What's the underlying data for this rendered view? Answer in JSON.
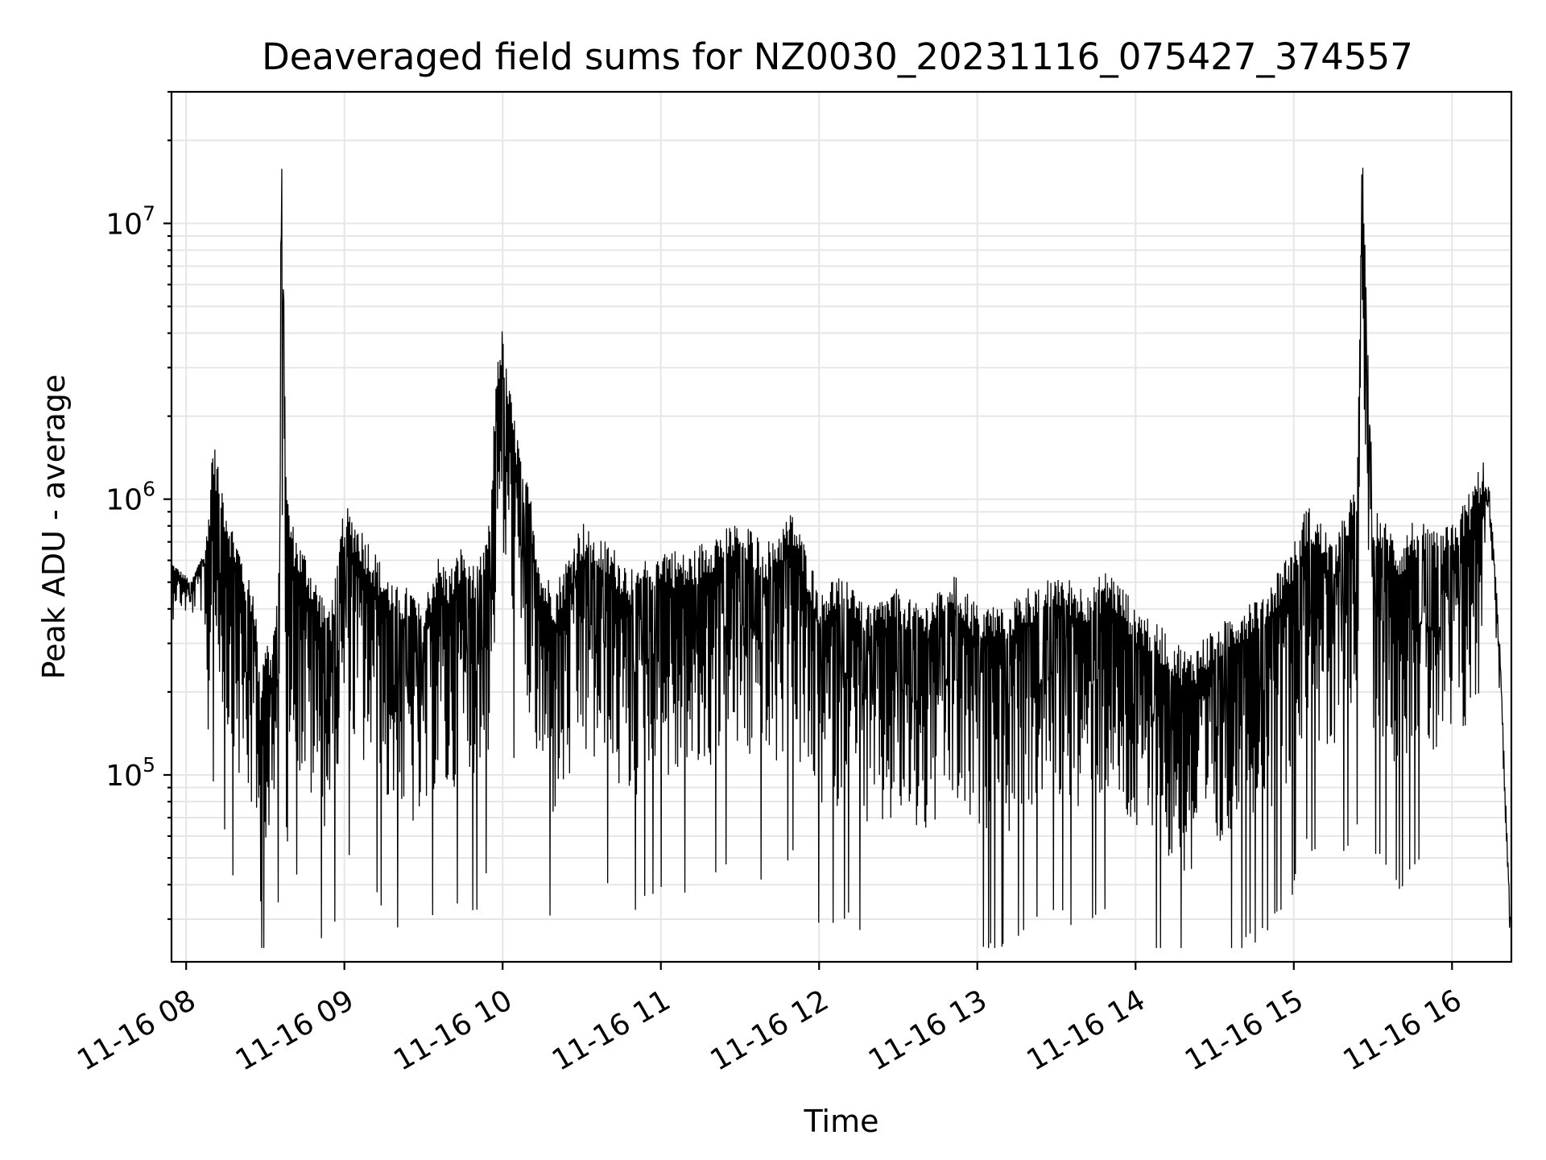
{
  "chart_data": {
    "type": "line",
    "title": "Deaveraged field sums for NZ0030_20231116_075427_374557",
    "xlabel": "Time",
    "ylabel": "Peak ADU - average",
    "x_scale": "time",
    "y_scale": "log",
    "xlim": [
      "2023-11-16 07:54:27",
      "2023-11-16 16:22:30"
    ],
    "ylim": [
      21000,
      30000000
    ],
    "grid": true,
    "legend": "none",
    "line_color": "#000000",
    "x_ticks": [
      "11-16 08",
      "11-16 09",
      "11-16 10",
      "11-16 11",
      "11-16 12",
      "11-16 13",
      "11-16 14",
      "11-16 15",
      "11-16 16"
    ],
    "y_ticks": [
      {
        "value": 100000,
        "base": "10",
        "exp": "5"
      },
      {
        "value": 1000000,
        "base": "10",
        "exp": "6"
      },
      {
        "value": 10000000,
        "base": "10",
        "exp": "7"
      }
    ],
    "series": [
      {
        "x": [
          "2023-11-16 07:54:30",
          "2023-11-16 07:58:00",
          "2023-11-16 08:02:00",
          "2023-11-16 08:06:00",
          "2023-11-16 08:08:00",
          "2023-11-16 08:10:00",
          "2023-11-16 08:12:00",
          "2023-11-16 08:14:00",
          "2023-11-16 08:17:00",
          "2023-11-16 08:20:00",
          "2023-11-16 08:23:00",
          "2023-11-16 08:26:00",
          "2023-11-16 08:28:00",
          "2023-11-16 08:30:00",
          "2023-11-16 08:32:00",
          "2023-11-16 08:34:00",
          "2023-11-16 08:35:30",
          "2023-11-16 08:36:00",
          "2023-11-16 08:37:00",
          "2023-11-16 08:38:00",
          "2023-11-16 08:40:00",
          "2023-11-16 08:43:00",
          "2023-11-16 08:46:00",
          "2023-11-16 08:50:00",
          "2023-11-16 08:55:00",
          "2023-11-16 09:00:00",
          "2023-11-16 09:05:00",
          "2023-11-16 09:10:00",
          "2023-11-16 09:15:00",
          "2023-11-16 09:20:00",
          "2023-11-16 09:25:00",
          "2023-11-16 09:30:00",
          "2023-11-16 09:35:00",
          "2023-11-16 09:40:00",
          "2023-11-16 09:45:00",
          "2023-11-16 09:50:00",
          "2023-11-16 09:55:00",
          "2023-11-16 09:58:00",
          "2023-11-16 10:00:00",
          "2023-11-16 10:02:00",
          "2023-11-16 10:04:00",
          "2023-11-16 10:06:00",
          "2023-11-16 10:08:00",
          "2023-11-16 10:10:00",
          "2023-11-16 10:15:00",
          "2023-11-16 10:20:00",
          "2023-11-16 10:30:00",
          "2023-11-16 10:40:00",
          "2023-11-16 10:50:00",
          "2023-11-16 11:00:00",
          "2023-11-16 11:10:00",
          "2023-11-16 11:20:00",
          "2023-11-16 11:30:00",
          "2023-11-16 11:40:00",
          "2023-11-16 11:50:00",
          "2023-11-16 12:00:00",
          "2023-11-16 12:10:00",
          "2023-11-16 12:20:00",
          "2023-11-16 12:30:00",
          "2023-11-16 12:40:00",
          "2023-11-16 12:50:00",
          "2023-11-16 13:00:00",
          "2023-11-16 13:10:00",
          "2023-11-16 13:20:00",
          "2023-11-16 13:30:00",
          "2023-11-16 13:40:00",
          "2023-11-16 13:50:00",
          "2023-11-16 14:00:00",
          "2023-11-16 14:10:00",
          "2023-11-16 14:20:00",
          "2023-11-16 14:30:00",
          "2023-11-16 14:40:00",
          "2023-11-16 14:50:00",
          "2023-11-16 15:00:00",
          "2023-11-16 15:05:00",
          "2023-11-16 15:10:00",
          "2023-11-16 15:15:00",
          "2023-11-16 15:20:00",
          "2023-11-16 15:24:00",
          "2023-11-16 15:26:00",
          "2023-11-16 15:30:00",
          "2023-11-16 15:35:00",
          "2023-11-16 15:40:00",
          "2023-11-16 15:45:00",
          "2023-11-16 15:50:00",
          "2023-11-16 15:55:00",
          "2023-11-16 16:00:00",
          "2023-11-16 16:04:00",
          "2023-11-16 16:08:00",
          "2023-11-16 16:11:00",
          "2023-11-16 16:14:00",
          "2023-11-16 16:16:00",
          "2023-11-16 16:18:00",
          "2023-11-16 16:20:00",
          "2023-11-16 16:22:00"
        ],
        "y": [
          560000,
          520000,
          480000,
          600000,
          550000,
          1200000,
          1000000,
          800000,
          600000,
          500000,
          400000,
          350000,
          150000,
          250000,
          200000,
          300000,
          500000,
          20000000,
          5000000,
          800000,
          600000,
          500000,
          450000,
          350000,
          300000,
          700000,
          600000,
          500000,
          400000,
          350000,
          350000,
          300000,
          450000,
          400000,
          500000,
          400000,
          600000,
          2500000,
          3000000,
          2000000,
          1500000,
          1200000,
          900000,
          800000,
          400000,
          350000,
          600000,
          500000,
          400000,
          500000,
          450000,
          550000,
          600000,
          500000,
          650000,
          350000,
          400000,
          300000,
          350000,
          300000,
          400000,
          300000,
          300000,
          350000,
          400000,
          350000,
          400000,
          300000,
          250000,
          200000,
          250000,
          300000,
          350000,
          500000,
          700000,
          600000,
          500000,
          700000,
          800000,
          15000000,
          700000,
          600000,
          500000,
          600000,
          600000,
          550000,
          600000,
          700000,
          800000,
          1000000,
          1100000,
          600000,
          300000,
          100000,
          30000
        ]
      }
    ]
  }
}
